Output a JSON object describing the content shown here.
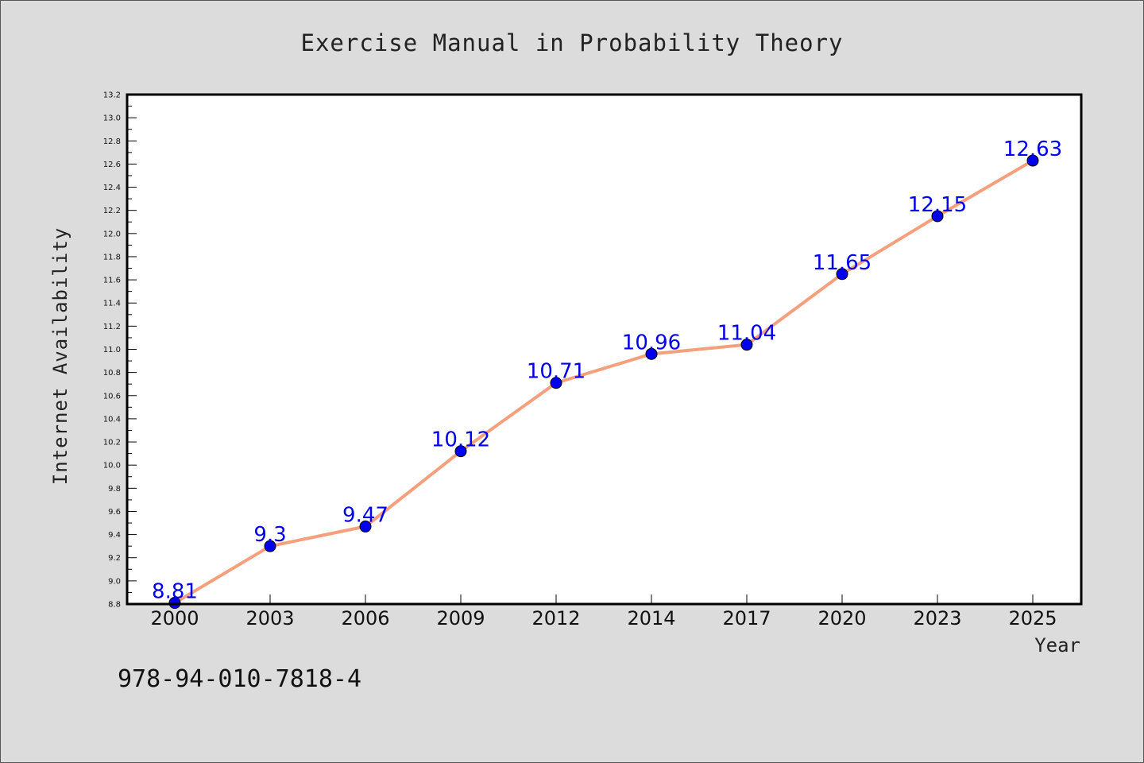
{
  "chart_data": {
    "type": "line",
    "title": "Exercise Manual in Probability Theory",
    "xlabel": "Year",
    "ylabel": "Internet Availability",
    "categories": [
      "2000",
      "2003",
      "2006",
      "2009",
      "2012",
      "2014",
      "2017",
      "2020",
      "2023",
      "2025"
    ],
    "series": [
      {
        "values": [
          8.81,
          9.3,
          9.47,
          10.12,
          10.71,
          10.96,
          11.04,
          11.65,
          12.15,
          12.63
        ],
        "labels": [
          "8.81",
          "9.3",
          "9.47",
          "10.12",
          "10.71",
          "10.96",
          "11.04",
          "11.65",
          "12.15",
          "12.63"
        ]
      }
    ],
    "ylim": [
      8.8,
      13.2
    ],
    "yticks": [
      "8.8",
      "9.0",
      "9.2",
      "9.4",
      "9.6",
      "9.8",
      "10.0",
      "10.2",
      "10.4",
      "10.6",
      "10.8",
      "11.0",
      "11.2",
      "11.4",
      "11.6",
      "11.8",
      "12.0",
      "12.2",
      "12.4",
      "12.6",
      "12.8",
      "13.0",
      "13.2"
    ],
    "grid": false,
    "legend": "none",
    "colors": {
      "line": "#f4a07c",
      "marker": "#0000ee",
      "data_label": "#0000ee",
      "plot_background": "#ffffff",
      "page_background": "#dcdcdc"
    }
  },
  "footer": {
    "isbn": "978-94-010-7818-4"
  }
}
